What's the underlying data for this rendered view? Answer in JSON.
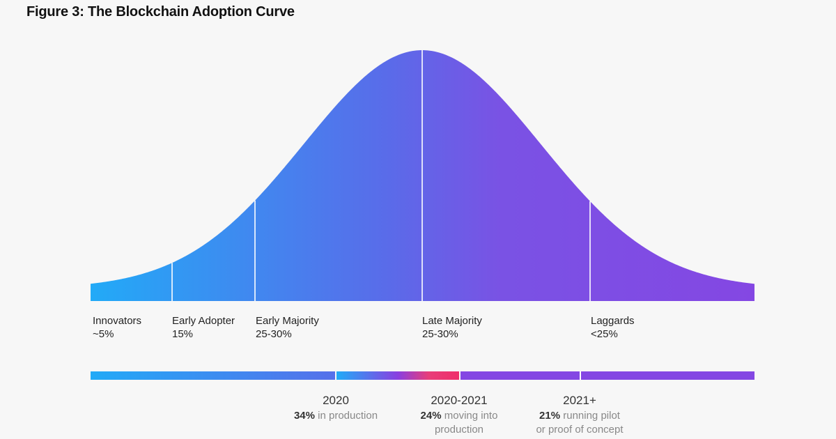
{
  "chart_data": {
    "type": "area",
    "title": "Figure 3: The Blockchain Adoption Curve",
    "segments": [
      {
        "name": "Innovators",
        "share": "~5%"
      },
      {
        "name": "Early Adopter",
        "share": "15%"
      },
      {
        "name": "Early Majority",
        "share": "25-30%"
      },
      {
        "name": "Late Majority",
        "share": "25-30%"
      },
      {
        "name": "Laggards",
        "share": "<25%"
      }
    ],
    "timeline": [
      {
        "year": "2020",
        "value": "34%",
        "desc_line1": "in production",
        "desc_line2": ""
      },
      {
        "year": "2020-2021",
        "value": "24%",
        "desc_line1": "moving into",
        "desc_line2": "production"
      },
      {
        "year": "2021+",
        "value": "21%",
        "desc_line1": "running pilot",
        "desc_line2": "or proof of concept"
      }
    ]
  },
  "colors": {
    "start": "#22aaf7",
    "mid": "#6361e8",
    "end": "#8447e3",
    "accent": "#e83e7a"
  }
}
